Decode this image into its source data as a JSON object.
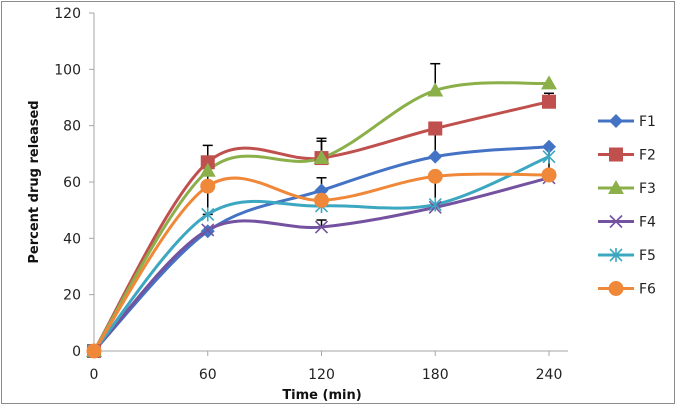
{
  "chart_data": {
    "type": "line",
    "title": "",
    "xlabel": "Time (min)",
    "ylabel": "Percent drug released",
    "x": [
      0,
      60,
      120,
      180,
      240
    ],
    "xticks": [
      "0",
      "60",
      "120",
      "180",
      "240"
    ],
    "xlim": [
      0,
      240
    ],
    "ylim": [
      0,
      120
    ],
    "yticks": [
      "0",
      "20",
      "40",
      "60",
      "80",
      "100",
      "120"
    ],
    "grid": false,
    "smooth": true,
    "legend_position": "right",
    "series": [
      {
        "name": "F1",
        "color": "#4472C4",
        "marker": "diamond",
        "values": [
          0,
          42.5,
          57,
          69,
          72.5
        ],
        "error": [
          0,
          0,
          4.5,
          0,
          0
        ]
      },
      {
        "name": "F2",
        "color": "#C0504D",
        "marker": "square",
        "values": [
          0,
          67,
          68.5,
          79,
          88.5
        ],
        "error": [
          0,
          6,
          7,
          0,
          3
        ]
      },
      {
        "name": "F3",
        "color": "#8BB04A",
        "marker": "triangle",
        "values": [
          0,
          64,
          68.5,
          92.5,
          95
        ],
        "error": [
          0,
          0,
          6,
          9.5,
          0
        ]
      },
      {
        "name": "F4",
        "color": "#7452A0",
        "marker": "x",
        "values": [
          0,
          43,
          44,
          51,
          61.5
        ],
        "error": [
          0,
          0,
          2.5,
          0,
          0
        ]
      },
      {
        "name": "F5",
        "color": "#3BA7C0",
        "marker": "star",
        "values": [
          0,
          48.5,
          51.5,
          52,
          69
        ],
        "error": [
          0,
          0,
          0,
          0,
          4
        ]
      },
      {
        "name": "F6",
        "color": "#F0883A",
        "marker": "circle",
        "values": [
          0,
          58.5,
          53.5,
          62,
          62.5
        ],
        "error": [
          0,
          0,
          0,
          0,
          0
        ]
      }
    ],
    "error_bars_down": [
      {
        "series": "F2",
        "x": 60,
        "low": 58.5
      },
      {
        "series": "F6",
        "x": 60,
        "low": 48.5
      },
      {
        "series": "F2",
        "x": 180,
        "low": 69
      },
      {
        "series": "F6",
        "x": 180,
        "low": 51
      },
      {
        "series": "F1",
        "x": 240,
        "low": 62.5
      }
    ]
  }
}
